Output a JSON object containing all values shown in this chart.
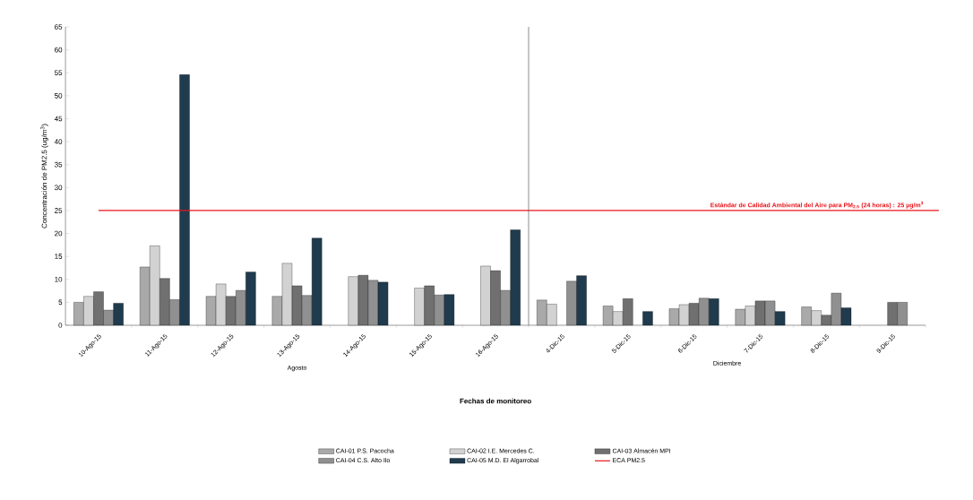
{
  "chart_data": [
    {
      "type": "bar",
      "categories": [
        "10-Ago-15",
        "11-Ago-15",
        "12-Ago-15",
        "13-Ago-15",
        "14-Ago-15",
        "15-Ago-15",
        "16-Ago-15"
      ],
      "series": [
        {
          "name": "CAI-01 P.S. Pacocha",
          "color": "#a9a9a9",
          "values": [
            5.0,
            12.7,
            6.3,
            6.3,
            null,
            null,
            null
          ]
        },
        {
          "name": "CAI-02 I.E. Mercedes C.",
          "color": "#d2d2d2",
          "values": [
            6.3,
            17.3,
            9.0,
            13.5,
            10.6,
            8.1,
            12.9
          ]
        },
        {
          "name": "CAI-03 Almacén MPI",
          "color": "#707070",
          "values": [
            7.3,
            10.2,
            6.3,
            8.6,
            10.9,
            8.6,
            11.9
          ]
        },
        {
          "name": "CAI-04 C.S. Alto Ilo",
          "color": "#909090",
          "values": [
            3.3,
            5.6,
            7.6,
            6.5,
            9.8,
            6.6,
            7.6
          ]
        },
        {
          "name": "CAI-05 M.D. El Algarrobal",
          "color": "#1f3b4d",
          "values": [
            4.8,
            54.6,
            11.6,
            19.0,
            9.4,
            6.7,
            20.8
          ]
        }
      ],
      "ylabel": "Concentración de PM2.5 (ug/m$^{3}$)",
      "xlabel": "Agosto",
      "ylim": [
        0,
        65
      ],
      "yticks": [
        0,
        5,
        10,
        15,
        20,
        25,
        30,
        35,
        40,
        45,
        50,
        55,
        60,
        65
      ],
      "ref_lines": [
        {
          "axis": "y",
          "value": 25,
          "label": "ECA PM2.5",
          "color": "#e8141b"
        }
      ],
      "annotations": [
        "Fechas de monitoreo"
      ],
      "legend": "bottom"
    },
    {
      "type": "bar",
      "categories": [
        "4-Dic-15",
        "5-Dic-15",
        "6-Dic-15",
        "7-Dic-15",
        "8-Dic-15",
        "9-Dic-15"
      ],
      "series": [
        {
          "color": "#a9a9a9",
          "values": [
            5.5,
            4.2,
            3.6,
            3.5,
            4.0,
            null
          ]
        },
        {
          "color": "#d2d2d2",
          "values": [
            4.6,
            3.0,
            4.5,
            4.2,
            3.2,
            null
          ]
        },
        {
          "color": "#707070",
          "values": [
            null,
            5.8,
            4.8,
            5.3,
            2.2,
            5.0
          ]
        },
        {
          "color": "#909090",
          "values": [
            9.6,
            null,
            5.9,
            5.3,
            7.0,
            5.0
          ]
        },
        {
          "color": "#1f3b4d",
          "values": [
            10.8,
            3.0,
            5.8,
            3.0,
            3.8,
            null
          ]
        }
      ],
      "xlabel": "Diciembre",
      "ylim": [
        0,
        65
      ],
      "tick_labels": "x",
      "ref_lines": [
        {
          "axis": "y",
          "value": 25,
          "color": "#e8141b"
        }
      ],
      "annotations": [
        {
          "text": "Estándar de Calidad Ambiental del Aire para PM$_{2.5}$ (24 horas) : 25 µg/m$^{3}$",
          "y": 25
        }
      ]
    }
  ]
}
